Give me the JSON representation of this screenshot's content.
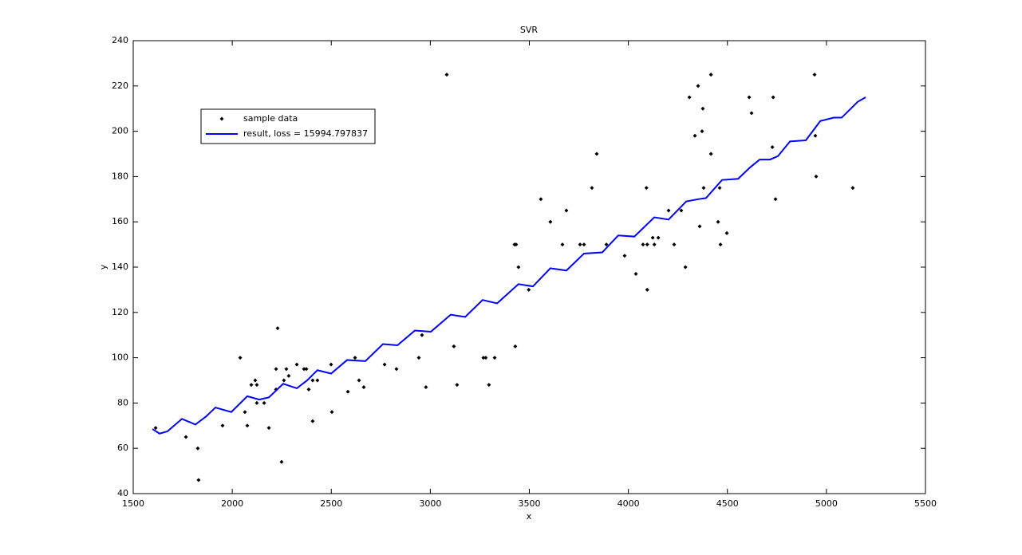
{
  "chart_data": {
    "type": "scatter",
    "title": "SVR",
    "x_label": "x",
    "y_label": "y",
    "xlim": [
      1500,
      5500
    ],
    "xticks": [
      1500,
      2000,
      2500,
      3000,
      3500,
      4000,
      4500,
      5000,
      5500
    ],
    "ylim": [
      40,
      240
    ],
    "yticks": [
      40,
      60,
      80,
      100,
      120,
      140,
      160,
      180,
      200,
      220,
      240
    ],
    "grid": false,
    "legend": "upper left",
    "series": [
      {
        "name": "sample data",
        "type": "scatter",
        "color": "#000000",
        "x": [
          1613,
          1766,
          1826,
          1830,
          1951,
          2040,
          2064,
          2076,
          2096,
          2116,
          2124,
          2124,
          2161,
          2185,
          2221,
          2221,
          2229,
          2249,
          2261,
          2273,
          2285,
          2326,
          2362,
          2374,
          2386,
          2406,
          2406,
          2430,
          2499,
          2503,
          2584,
          2620,
          2640,
          2664,
          2769,
          2829,
          2942,
          2958,
          2978,
          3083,
          3119,
          3135,
          3268,
          3280,
          3296,
          3325,
          3425,
          3433,
          3429,
          3445,
          3497,
          3558,
          3606,
          3667,
          3687,
          3756,
          3776,
          3816,
          3840,
          3889,
          3981,
          4038,
          4074,
          4091,
          4095,
          4095,
          4123,
          4131,
          4151,
          4203,
          4231,
          4267,
          4288,
          4308,
          4336,
          4352,
          4360,
          4372,
          4376,
          4380,
          4417,
          4417,
          4453,
          4461,
          4465,
          4497,
          4610,
          4622,
          4727,
          4731,
          4743,
          4940,
          4944,
          4948,
          5133
        ],
        "values": [
          69,
          65,
          60,
          46,
          70,
          100,
          76,
          70,
          88,
          90,
          88,
          80,
          80,
          69,
          95,
          86,
          113,
          54,
          90,
          95,
          92,
          97,
          95,
          95,
          86,
          72,
          90,
          90,
          97,
          76,
          85,
          100,
          90,
          87,
          97,
          95,
          100,
          110,
          87,
          225,
          105,
          88,
          100,
          100,
          88,
          100,
          150,
          150,
          105,
          140,
          130,
          170,
          160,
          150,
          165,
          150,
          150,
          175,
          190,
          150,
          145,
          137,
          150,
          175,
          150,
          130,
          153,
          150,
          153,
          165,
          150,
          165,
          140,
          215,
          198,
          220,
          158,
          200,
          210,
          175,
          225,
          190,
          160,
          175,
          150,
          155,
          215,
          208,
          193,
          215,
          170,
          225,
          198,
          180,
          175
        ]
      },
      {
        "name": "result, loss = 15994.797837",
        "type": "line",
        "color": "#0000ff",
        "x": [
          1597,
          1633,
          1673,
          1746,
          1814,
          1867,
          1915,
          1995,
          2076,
          2136,
          2185,
          2257,
          2326,
          2378,
          2430,
          2499,
          2580,
          2672,
          2761,
          2834,
          2922,
          3003,
          3103,
          3176,
          3264,
          3337,
          3445,
          3518,
          3606,
          3687,
          3776,
          3868,
          3949,
          4030,
          4131,
          4203,
          4292,
          4352,
          4392,
          4473,
          4554,
          4614,
          4663,
          4715,
          4755,
          4816,
          4896,
          4969,
          5037,
          5077,
          5158,
          5198
        ],
        "values": [
          68.5,
          66.5,
          67.5,
          73,
          70.5,
          74,
          78,
          76,
          83,
          81.5,
          82.5,
          88.5,
          86.5,
          90,
          94.5,
          93,
          99,
          98.5,
          106,
          105.5,
          112,
          111.5,
          119,
          118,
          125.5,
          124,
          132.5,
          131.5,
          139.5,
          138.5,
          146,
          146.5,
          154,
          153.5,
          162,
          161,
          169,
          170,
          170.5,
          178.5,
          179,
          184,
          187.5,
          187.5,
          189,
          195.5,
          196,
          204.5,
          206,
          206,
          213,
          215
        ]
      }
    ]
  }
}
